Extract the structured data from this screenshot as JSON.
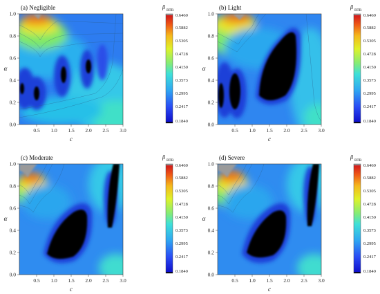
{
  "chart_data": [
    {
      "type": "heatmap",
      "title": "(a) Negligible",
      "xlabel": "c",
      "ylabel": "α",
      "xlim": [
        0,
        3.0
      ],
      "ylim": [
        0,
        1.0
      ],
      "x_ticks": [
        "0.5",
        "1.0",
        "1.5",
        "2.0",
        "2.5",
        "3.0"
      ],
      "y_ticks": [
        "0.0",
        "0.2",
        "0.4",
        "0.6",
        "0.8",
        "1.0"
      ],
      "colorbar_label": "β",
      "colorbar_sub": "RTR",
      "colorbar_ticks": [
        "0.6460",
        "0.5882",
        "0.5305",
        "0.4728",
        "0.4150",
        "0.3573",
        "0.2995",
        "0.2417",
        "0.1840"
      ],
      "min_regions": [
        {
          "c": 0.15,
          "alpha": 0.3
        },
        {
          "c": 0.55,
          "alpha": 0.25
        },
        {
          "c": 1.2,
          "alpha": 0.45
        },
        {
          "c": 1.85,
          "alpha": 0.52
        }
      ],
      "max_region": {
        "c": 0.55,
        "alpha": 0.98
      }
    },
    {
      "type": "heatmap",
      "title": "(b) Light",
      "xlabel": "c",
      "ylabel": "α",
      "xlim": [
        0,
        3.0
      ],
      "ylim": [
        0,
        1.0
      ],
      "x_ticks": [
        "0.5",
        "1.0",
        "1.5",
        "2.0",
        "2.5",
        "3.0"
      ],
      "y_ticks": [
        "0.0",
        "0.2",
        "0.4",
        "0.6",
        "0.8",
        "1.0"
      ],
      "colorbar_label": "β",
      "colorbar_sub": "RTR",
      "colorbar_ticks": [
        "0.6460",
        "0.5882",
        "0.5305",
        "0.4728",
        "0.4150",
        "0.3573",
        "0.2995",
        "0.2417",
        "0.1840"
      ],
      "min_regions": [
        {
          "c": 0.1,
          "alpha": 0.35
        },
        {
          "c": 0.5,
          "alpha": 0.35
        },
        {
          "c": 1.8,
          "alpha": 0.5
        }
      ],
      "max_region": {
        "c": 0.6,
        "alpha": 0.98
      }
    },
    {
      "type": "heatmap",
      "title": "(c) Moderate",
      "xlabel": "c",
      "ylabel": "α",
      "xlim": [
        0,
        3.0
      ],
      "ylim": [
        0,
        1.0
      ],
      "x_ticks": [
        "0.5",
        "1.0",
        "1.5",
        "2.0",
        "2.5",
        "3.0"
      ],
      "y_ticks": [
        "0.0",
        "0.2",
        "0.4",
        "0.6",
        "0.8",
        "1.0"
      ],
      "colorbar_label": "β",
      "colorbar_sub": "RTR",
      "colorbar_ticks": [
        "0.6460",
        "0.5882",
        "0.5305",
        "0.4728",
        "0.4150",
        "0.3573",
        "0.2995",
        "0.2417",
        "0.1840"
      ],
      "min_regions": [
        {
          "c": 1.4,
          "alpha": 0.35
        },
        {
          "c": 2.75,
          "alpha": 0.7
        }
      ],
      "max_region": {
        "c": 0.4,
        "alpha": 0.98
      }
    },
    {
      "type": "heatmap",
      "title": "(d) Severe",
      "xlabel": "c",
      "ylabel": "α",
      "xlim": [
        0,
        3.0
      ],
      "ylim": [
        0,
        1.0
      ],
      "x_ticks": [
        "0.5",
        "1.0",
        "1.5",
        "2.0",
        "2.5",
        "3.0"
      ],
      "y_ticks": [
        "0.0",
        "0.2",
        "0.4",
        "0.6",
        "0.8",
        "1.0"
      ],
      "colorbar_label": "β",
      "colorbar_sub": "RTR",
      "colorbar_ticks": [
        "0.6460",
        "0.5882",
        "0.5305",
        "0.4728",
        "0.4150",
        "0.3573",
        "0.2995",
        "0.2417",
        "0.1840"
      ],
      "min_regions": [
        {
          "c": 1.45,
          "alpha": 0.35
        },
        {
          "c": 2.75,
          "alpha": 0.7
        }
      ],
      "max_region": {
        "c": 0.4,
        "alpha": 0.98
      }
    }
  ]
}
